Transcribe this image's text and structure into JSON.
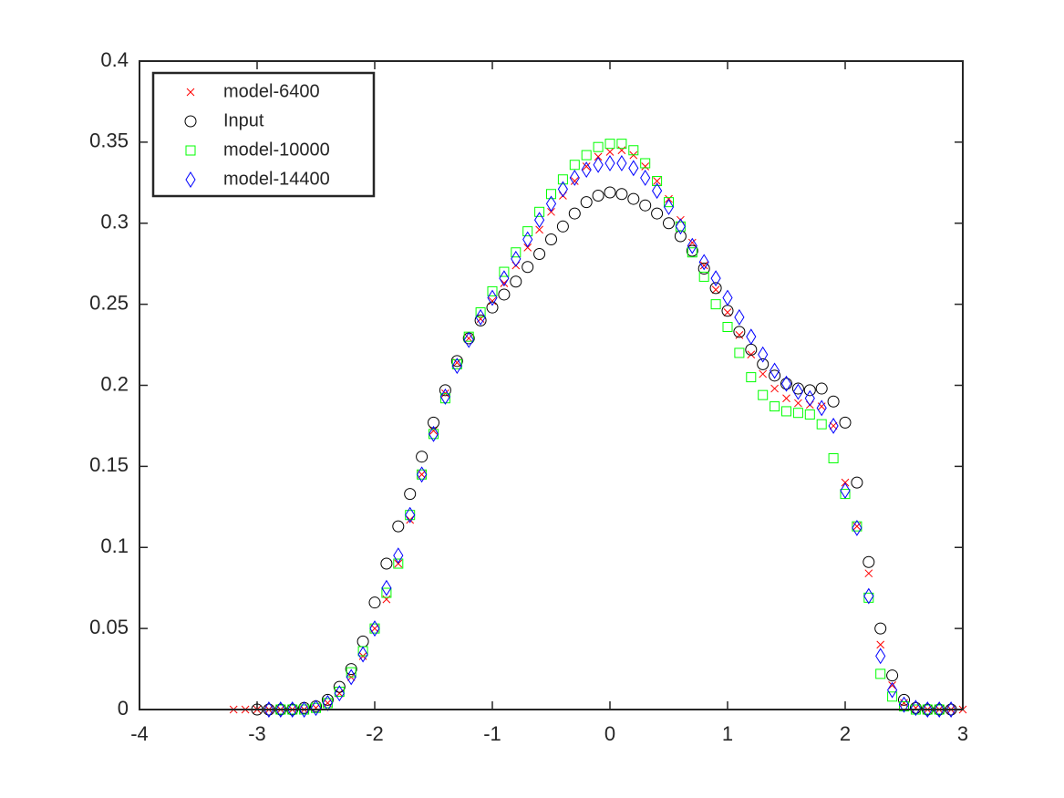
{
  "chart_data": {
    "type": "scatter",
    "xlim": [
      -4,
      3
    ],
    "xticks": [
      -4,
      -3,
      -2,
      -1,
      0,
      1,
      2,
      3
    ],
    "ylim": [
      0,
      0.4
    ],
    "yticks": [
      0,
      0.05,
      0.1,
      0.15,
      0.2,
      0.25,
      0.3,
      0.35,
      0.4
    ],
    "legend": "upper-left",
    "series": [
      {
        "name": "model-6400",
        "marker": "x",
        "color": "#ff0000",
        "x": [
          -3.2,
          -3.1,
          -3.0,
          -2.9,
          -2.8,
          -2.7,
          -2.6,
          -2.5,
          -2.4,
          -2.3,
          -2.2,
          -2.1,
          -2.0,
          -1.9,
          -1.8,
          -1.7,
          -1.6,
          -1.5,
          -1.4,
          -1.3,
          -1.2,
          -1.1,
          -1.0,
          -0.9,
          -0.8,
          -0.7,
          -0.6,
          -0.5,
          -0.4,
          -0.3,
          -0.2,
          -0.1,
          0,
          0.1,
          0.2,
          0.3,
          0.4,
          0.5,
          0.6,
          0.7,
          0.8,
          0.9,
          1.0,
          1.1,
          1.2,
          1.3,
          1.4,
          1.5,
          1.6,
          1.7,
          1.8,
          1.9,
          2.0,
          2.1,
          2.2,
          2.3,
          2.4,
          2.5,
          2.6,
          2.7,
          2.8,
          2.9,
          3.0
        ],
        "values": [
          0,
          0,
          0,
          0,
          0,
          0,
          0,
          0.001,
          0.004,
          0.01,
          0.02,
          0.033,
          0.05,
          0.068,
          0.09,
          0.117,
          0.145,
          0.172,
          0.195,
          0.214,
          0.229,
          0.241,
          0.252,
          0.263,
          0.274,
          0.285,
          0.296,
          0.307,
          0.317,
          0.326,
          0.335,
          0.341,
          0.344,
          0.345,
          0.342,
          0.335,
          0.326,
          0.315,
          0.302,
          0.288,
          0.274,
          0.259,
          0.245,
          0.231,
          0.219,
          0.207,
          0.198,
          0.192,
          0.189,
          0.188,
          0.187,
          0.175,
          0.14,
          0.113,
          0.084,
          0.04,
          0.015,
          0.004,
          0.001,
          0,
          0,
          0,
          0
        ]
      },
      {
        "name": "Input",
        "marker": "o",
        "color": "#000000",
        "x": [
          -3.0,
          -2.9,
          -2.8,
          -2.7,
          -2.6,
          -2.5,
          -2.4,
          -2.3,
          -2.2,
          -2.1,
          -2.0,
          -1.9,
          -1.8,
          -1.7,
          -1.6,
          -1.5,
          -1.4,
          -1.3,
          -1.2,
          -1.1,
          -1.0,
          -0.9,
          -0.8,
          -0.7,
          -0.6,
          -0.5,
          -0.4,
          -0.3,
          -0.2,
          -0.1,
          0,
          0.1,
          0.2,
          0.3,
          0.4,
          0.5,
          0.6,
          0.7,
          0.8,
          0.9,
          1.0,
          1.1,
          1.2,
          1.3,
          1.4,
          1.5,
          1.6,
          1.7,
          1.8,
          1.9,
          2.0,
          2.1,
          2.2,
          2.3,
          2.4,
          2.5,
          2.6,
          2.7,
          2.8,
          2.9
        ],
        "values": [
          0,
          0,
          0,
          0,
          0.001,
          0.002,
          0.006,
          0.014,
          0.025,
          0.042,
          0.066,
          0.09,
          0.113,
          0.133,
          0.156,
          0.177,
          0.197,
          0.215,
          0.229,
          0.24,
          0.248,
          0.256,
          0.264,
          0.273,
          0.281,
          0.29,
          0.298,
          0.306,
          0.313,
          0.317,
          0.319,
          0.318,
          0.315,
          0.311,
          0.306,
          0.3,
          0.292,
          0.283,
          0.272,
          0.26,
          0.246,
          0.233,
          0.222,
          0.213,
          0.206,
          0.201,
          0.198,
          0.197,
          0.198,
          0.19,
          0.177,
          0.14,
          0.091,
          0.05,
          0.021,
          0.006,
          0.001,
          0,
          0,
          0
        ]
      },
      {
        "name": "model-10000",
        "marker": "s",
        "color": "#00ff00",
        "x": [
          -2.8,
          -2.7,
          -2.6,
          -2.5,
          -2.4,
          -2.3,
          -2.2,
          -2.1,
          -2.0,
          -1.9,
          -1.8,
          -1.7,
          -1.6,
          -1.5,
          -1.4,
          -1.3,
          -1.2,
          -1.1,
          -1.0,
          -0.9,
          -0.8,
          -0.7,
          -0.6,
          -0.5,
          -0.4,
          -0.3,
          -0.2,
          -0.1,
          0,
          0.1,
          0.2,
          0.3,
          0.4,
          0.5,
          0.6,
          0.7,
          0.8,
          0.9,
          1.0,
          1.1,
          1.2,
          1.3,
          1.4,
          1.5,
          1.6,
          1.7,
          1.8,
          1.9,
          2.0,
          2.1,
          2.2,
          2.3,
          2.4,
          2.5,
          2.6,
          2.7,
          2.8
        ],
        "values": [
          0,
          0,
          0,
          0.001,
          0.004,
          0.011,
          0.023,
          0.036,
          0.05,
          0.072,
          0.09,
          0.12,
          0.145,
          0.17,
          0.192,
          0.213,
          0.23,
          0.245,
          0.258,
          0.27,
          0.282,
          0.295,
          0.307,
          0.318,
          0.327,
          0.336,
          0.342,
          0.347,
          0.349,
          0.349,
          0.345,
          0.337,
          0.326,
          0.313,
          0.298,
          0.282,
          0.267,
          0.25,
          0.236,
          0.22,
          0.205,
          0.194,
          0.187,
          0.184,
          0.183,
          0.182,
          0.176,
          0.155,
          0.133,
          0.113,
          0.069,
          0.022,
          0.008,
          0.002,
          0,
          0,
          0
        ]
      },
      {
        "name": "model-14400",
        "marker": "d",
        "color": "#0000ff",
        "x": [
          -2.9,
          -2.8,
          -2.7,
          -2.6,
          -2.5,
          -2.4,
          -2.3,
          -2.2,
          -2.1,
          -2.0,
          -1.9,
          -1.8,
          -1.7,
          -1.6,
          -1.5,
          -1.4,
          -1.3,
          -1.2,
          -1.1,
          -1.0,
          -0.9,
          -0.8,
          -0.7,
          -0.6,
          -0.5,
          -0.4,
          -0.3,
          -0.2,
          -0.1,
          0,
          0.1,
          0.2,
          0.3,
          0.4,
          0.5,
          0.6,
          0.7,
          0.8,
          0.9,
          1.0,
          1.1,
          1.2,
          1.3,
          1.4,
          1.5,
          1.6,
          1.7,
          1.8,
          1.9,
          2.0,
          2.1,
          2.2,
          2.3,
          2.4,
          2.5,
          2.6,
          2.7,
          2.8,
          2.9
        ],
        "values": [
          0,
          0,
          0,
          0,
          0.001,
          0.004,
          0.01,
          0.02,
          0.034,
          0.05,
          0.075,
          0.095,
          0.12,
          0.145,
          0.17,
          0.193,
          0.212,
          0.228,
          0.242,
          0.254,
          0.266,
          0.278,
          0.29,
          0.302,
          0.312,
          0.321,
          0.328,
          0.333,
          0.336,
          0.337,
          0.337,
          0.334,
          0.328,
          0.32,
          0.31,
          0.298,
          0.286,
          0.276,
          0.266,
          0.254,
          0.242,
          0.23,
          0.219,
          0.209,
          0.201,
          0.196,
          0.192,
          0.186,
          0.175,
          0.135,
          0.112,
          0.07,
          0.033,
          0.012,
          0.003,
          0.001,
          0,
          0,
          0
        ]
      }
    ]
  }
}
